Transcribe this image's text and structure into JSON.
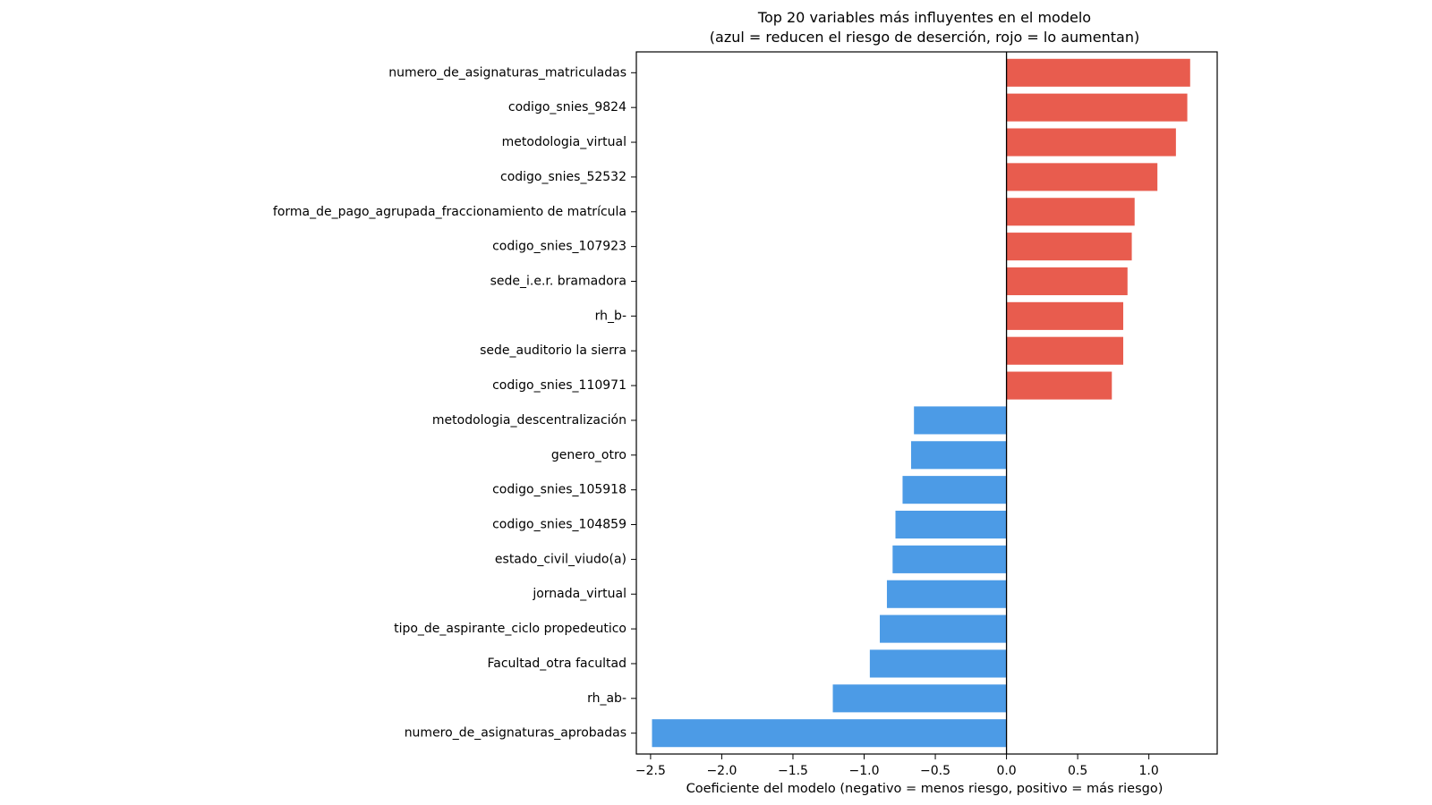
{
  "chart_data": {
    "type": "bar",
    "orientation": "horizontal",
    "title_lines": [
      "Top 20 variables más influyentes en el modelo",
      "(azul = reducen el riesgo de deserción, rojo = lo aumentan)"
    ],
    "xlabel": "Coeficiente del modelo (negativo = menos riesgo, positivo = más riesgo)",
    "ylabel": "",
    "xlim": [
      -2.6,
      1.48
    ],
    "xticks": [
      -2.5,
      -2.0,
      -1.5,
      -1.0,
      -0.5,
      0.0,
      0.5,
      1.0
    ],
    "xtick_labels": [
      "−2.5",
      "−2.0",
      "−1.5",
      "−1.0",
      "−0.5",
      "0.0",
      "0.5",
      "1.0"
    ],
    "grid": false,
    "zero_line": true,
    "colors": {
      "positive": "#e85c4e",
      "negative": "#4c9be6"
    },
    "categories": [
      "numero_de_asignaturas_matriculadas",
      "codigo_snies_9824",
      "metodologia_virtual",
      "codigo_snies_52532",
      "forma_de_pago_agrupada_fraccionamiento de matrícula",
      "codigo_snies_107923",
      "sede_i.e.r. bramadora",
      "rh_b-",
      "sede_auditorio la sierra",
      "codigo_snies_110971",
      "metodologia_descentralización",
      "genero_otro",
      "codigo_snies_105918",
      "codigo_snies_104859",
      "estado_civil_viudo(a)",
      "jornada_virtual",
      "tipo_de_aspirante_ciclo propedeutico",
      "Facultad_otra facultad",
      "rh_ab-",
      "numero_de_asignaturas_aprobadas"
    ],
    "values": [
      1.29,
      1.27,
      1.19,
      1.06,
      0.9,
      0.88,
      0.85,
      0.82,
      0.82,
      0.74,
      -0.65,
      -0.67,
      -0.73,
      -0.78,
      -0.8,
      -0.84,
      -0.89,
      -0.96,
      -1.22,
      -2.49
    ]
  }
}
